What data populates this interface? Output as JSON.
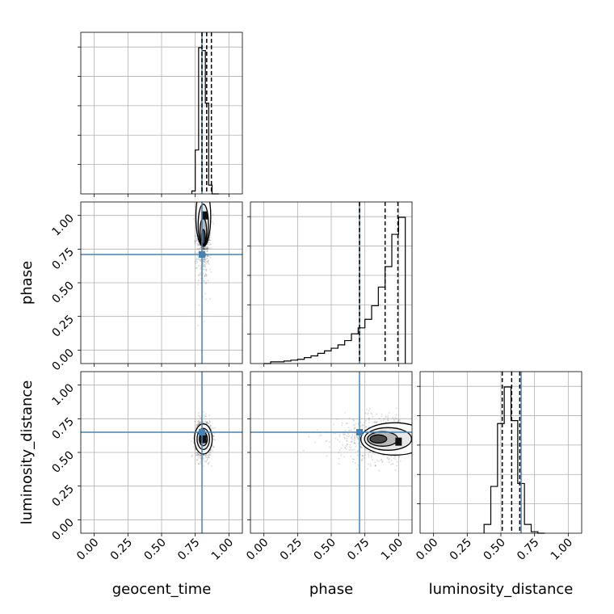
{
  "chart_data": {
    "type": "corner",
    "parameters": [
      "geocent_time",
      "phase",
      "luminosity_distance"
    ],
    "injection": {
      "geocent_time": 0.8,
      "phase": 0.71,
      "luminosity_distance": 0.65
    },
    "range": [
      -0.1,
      1.1
    ],
    "ticks": [
      0.0,
      0.25,
      0.5,
      0.75,
      1.0
    ],
    "tick_labels": [
      "0.00",
      "0.25",
      "0.50",
      "0.75",
      "1.00"
    ],
    "grid": true,
    "injection_color": "#4682b4",
    "histograms": {
      "geocent_time": {
        "bin_edges": [
          0.725,
          0.75,
          0.775,
          0.8,
          0.825,
          0.85,
          0.875,
          0.9,
          0.925
        ],
        "counts": [
          0.02,
          0.3,
          1.0,
          0.98,
          0.62,
          0.06,
          0.0,
          0.0
        ],
        "quantiles": [
          0.8,
          0.835,
          0.87
        ]
      },
      "phase": {
        "bin_edges": [
          0.0,
          0.05,
          0.1,
          0.15,
          0.2,
          0.25,
          0.3,
          0.35,
          0.4,
          0.45,
          0.5,
          0.55,
          0.6,
          0.65,
          0.7,
          0.75,
          0.8,
          0.85,
          0.9,
          0.95,
          1.0,
          1.05
        ],
        "counts": [
          0.0,
          0.01,
          0.01,
          0.015,
          0.02,
          0.025,
          0.035,
          0.045,
          0.06,
          0.075,
          0.09,
          0.11,
          0.135,
          0.175,
          0.21,
          0.26,
          0.34,
          0.45,
          0.57,
          0.76,
          0.86
        ],
        "quantiles": [
          0.71,
          0.9,
          0.995
        ]
      },
      "luminosity_distance": {
        "bin_edges": [
          0.375,
          0.425,
          0.475,
          0.525,
          0.575,
          0.625,
          0.675,
          0.725,
          0.775,
          0.825
        ],
        "counts": [
          0.06,
          0.32,
          0.75,
          1.0,
          0.77,
          0.34,
          0.06,
          0.01,
          0.0
        ],
        "quantiles": [
          0.51,
          0.58,
          0.64
        ]
      }
    },
    "pairs": [
      {
        "x": "geocent_time",
        "y": "phase",
        "mean": [
          0.81,
          0.94
        ],
        "spread": [
          0.025,
          0.2
        ],
        "density_peak": [
          0.82,
          1.0
        ]
      },
      {
        "x": "geocent_time",
        "y": "luminosity_distance",
        "mean": [
          0.81,
          0.6
        ],
        "spread": [
          0.03,
          0.07
        ],
        "density_peak": [
          0.81,
          0.6
        ]
      },
      {
        "x": "phase",
        "y": "luminosity_distance",
        "mean": [
          0.8,
          0.6
        ],
        "spread": [
          0.2,
          0.075
        ],
        "density_peak": [
          1.0,
          0.58
        ]
      }
    ]
  }
}
